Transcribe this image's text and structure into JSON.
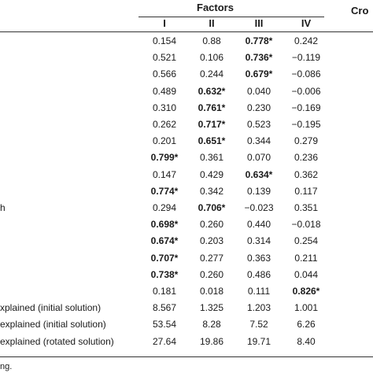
{
  "header": {
    "title": "Factors",
    "partial_right": "Cro",
    "columns": [
      "I",
      "II",
      "III",
      "IV"
    ]
  },
  "rows": [
    {
      "label": "",
      "cells": [
        "0.154",
        "0.88",
        "0.778*",
        "0.242"
      ],
      "bold": [
        false,
        false,
        true,
        false
      ]
    },
    {
      "label": "",
      "cells": [
        "0.521",
        "0.106",
        "0.736*",
        "−0.119"
      ],
      "bold": [
        false,
        false,
        true,
        false
      ]
    },
    {
      "label": "",
      "cells": [
        "0.566",
        "0.244",
        "0.679*",
        "−0.086"
      ],
      "bold": [
        false,
        false,
        true,
        false
      ]
    },
    {
      "label": "",
      "cells": [
        "0.489",
        "0.632*",
        "0.040",
        "−0.006"
      ],
      "bold": [
        false,
        true,
        false,
        false
      ]
    },
    {
      "label": "",
      "cells": [
        "0.310",
        "0.761*",
        "0.230",
        "−0.169"
      ],
      "bold": [
        false,
        true,
        false,
        false
      ]
    },
    {
      "label": "",
      "cells": [
        "0.262",
        "0.717*",
        "0.523",
        "−0.195"
      ],
      "bold": [
        false,
        true,
        false,
        false
      ]
    },
    {
      "label": "",
      "cells": [
        "0.201",
        "0.651*",
        "0.344",
        "0.279"
      ],
      "bold": [
        false,
        true,
        false,
        false
      ]
    },
    {
      "label": "",
      "cells": [
        "0.799*",
        "0.361",
        "0.070",
        "0.236"
      ],
      "bold": [
        true,
        false,
        false,
        false
      ]
    },
    {
      "label": "",
      "cells": [
        "0.147",
        "0.429",
        "0.634*",
        "0.362"
      ],
      "bold": [
        false,
        false,
        true,
        false
      ]
    },
    {
      "label": "",
      "cells": [
        "0.774*",
        "0.342",
        "0.139",
        "0.117"
      ],
      "bold": [
        true,
        false,
        false,
        false
      ]
    },
    {
      "label": "h",
      "cells": [
        "0.294",
        "0.706*",
        "−0.023",
        "0.351"
      ],
      "bold": [
        false,
        true,
        false,
        false
      ]
    },
    {
      "label": "",
      "cells": [
        "0.698*",
        "0.260",
        "0.440",
        "−0.018"
      ],
      "bold": [
        true,
        false,
        false,
        false
      ]
    },
    {
      "label": "",
      "cells": [
        "0.674*",
        "0.203",
        "0.314",
        "0.254"
      ],
      "bold": [
        true,
        false,
        false,
        false
      ]
    },
    {
      "label": "",
      "cells": [
        "0.707*",
        "0.277",
        "0.363",
        "0.211"
      ],
      "bold": [
        true,
        false,
        false,
        false
      ]
    },
    {
      "label": "",
      "cells": [
        "0.738*",
        "0.260",
        "0.486",
        "0.044"
      ],
      "bold": [
        true,
        false,
        false,
        false
      ]
    },
    {
      "label": "",
      "cells": [
        "0.181",
        "0.018",
        "0.111",
        "0.826*"
      ],
      "bold": [
        false,
        false,
        false,
        true
      ]
    },
    {
      "label": "xplained (initial solution)",
      "cells": [
        "8.567",
        "1.325",
        "1.203",
        "1.001"
      ],
      "bold": [
        false,
        false,
        false,
        false
      ]
    },
    {
      "label": "explained (initial solution)",
      "cells": [
        "53.54",
        "8.28",
        "7.52",
        "6.26"
      ],
      "bold": [
        false,
        false,
        false,
        false
      ]
    },
    {
      "label": "explained (rotated solution)",
      "cells": [
        "27.64",
        "19.86",
        "19.71",
        "8.40"
      ],
      "bold": [
        false,
        false,
        false,
        false
      ]
    }
  ],
  "footnote": "ng."
}
